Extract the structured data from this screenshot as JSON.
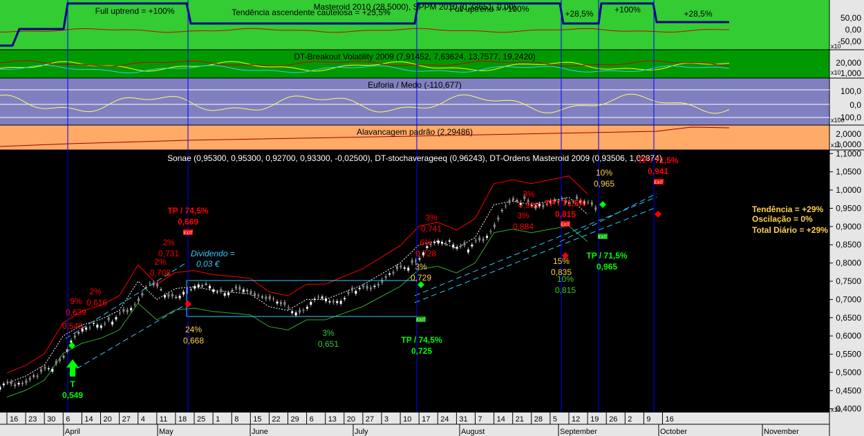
{
  "colors": {
    "green_panel": "#33cc33",
    "dark_green_panel": "#009900",
    "purple_panel": "#8080c0",
    "orange_panel": "#ffaa66",
    "price_bg": "#000000",
    "axis_bg": "#e6e6e6",
    "vline": "#0000ff",
    "buy": "#00ff00",
    "sell": "#ff0000",
    "yellow_text": "#ffd24d",
    "channel": "#33ccff"
  },
  "panels": {
    "masteroid": {
      "title": "Masteroid 2010 (28,5000), SPPM 2010 (0,33651, 0,00)",
      "phase_labels": [
        "Full uptrend = +100%",
        "Tendência ascendente cautelosa = +25,5%",
        "Full uptrend = +100%",
        "+28,5%",
        "+100%",
        "+28,5%"
      ],
      "ticks": [
        "50,00",
        "0,00",
        "-50,00"
      ],
      "scale": "x10"
    },
    "breakout": {
      "title": "DT-Breakout Volatility 2009 (7,91452, 7,63624, 13,7577, 19,2420)",
      "ticks": [
        "20,000",
        "1,000"
      ],
      "scale": "x10"
    },
    "euforia": {
      "title": "Euforia / Medo (-110,677)",
      "ticks": [
        "100,0",
        "0,0",
        "-100,0"
      ],
      "scale": "x100"
    },
    "alavancagem": {
      "title": "Alavancagem padrão (2,29486)",
      "ticks": [
        "2,0000",
        "1,0000"
      ],
      "scale": "x10"
    }
  },
  "chart_data": {
    "type": "line",
    "title": "Sonae (0,95300, 0,95300, 0,92700, 0,93300, -0,02500), DT-stochaverageeq (0,96243), DT-Ordens Masteroid 2009 (0,93506, 1,02874)",
    "ylim": [
      0.39,
      1.11
    ],
    "y_ticks": [
      "1,1000",
      "1,0500",
      "1,0000",
      "0,9500",
      "0,9000",
      "0,8500",
      "0,8000",
      "0,7500",
      "0,7000",
      "0,6500",
      "0,6000",
      "0,5500",
      "0,5000",
      "0,4500",
      "0,4000"
    ],
    "y_scale_label": "x10",
    "x_day_labels": [
      "16",
      "23",
      "30",
      "6",
      "14",
      "20",
      "27",
      "4",
      "11",
      "18",
      "25",
      "1",
      "8",
      "15",
      "22",
      "29",
      "6",
      "13",
      "20",
      "27",
      "3",
      "10",
      "17",
      "24",
      "31",
      "7",
      "14",
      "21",
      "28",
      "5",
      "12",
      "19",
      "26",
      "2",
      "9",
      "16"
    ],
    "x_month_labels": [
      "April",
      "May",
      "June",
      "July",
      "August",
      "September",
      "October",
      "November"
    ],
    "series": [
      {
        "name": "Sonae",
        "x": [
          "Mar 16",
          "Mar 23",
          "Mar 30",
          "Apr 6",
          "Apr 14",
          "Apr 20",
          "Apr 27",
          "May 4",
          "May 11",
          "May 18",
          "May 25",
          "Jun 1",
          "Jun 8",
          "Jun 15",
          "Jun 22",
          "Jun 29",
          "Jul 6",
          "Jul 13",
          "Jul 20",
          "Jul 27",
          "Aug 3",
          "Aug 10",
          "Aug 17",
          "Aug 24",
          "Aug 31",
          "Sep 7",
          "Sep 14",
          "Sep 21",
          "Sep 28",
          "Oct 5",
          "Oct 12",
          "Oct 19"
        ],
        "values": [
          0.47,
          0.49,
          0.52,
          0.6,
          0.63,
          0.645,
          0.67,
          0.75,
          0.7,
          0.73,
          0.735,
          0.725,
          0.72,
          0.715,
          0.68,
          0.67,
          0.7,
          0.7,
          0.72,
          0.74,
          0.77,
          0.8,
          0.85,
          0.86,
          0.84,
          0.87,
          0.96,
          0.97,
          0.96,
          0.97,
          0.98,
          0.933
        ]
      }
    ],
    "annotations": {
      "sell_labels": [
        {
          "lines": [
            "TP / 74,5%",
            "0,669"
          ]
        },
        {
          "lines": [
            "TP / 71,5%",
            "0,815"
          ]
        },
        {
          "lines": [
            "TP / 71,5%",
            "0,941"
          ]
        }
      ],
      "buy_labels": [
        {
          "lines": [
            "T",
            "0,549"
          ]
        },
        {
          "lines": [
            "TP / 74,5%",
            "0,725"
          ]
        },
        {
          "lines": [
            "TP / 71,5%",
            "0,965"
          ]
        }
      ],
      "red_small": [
        "9%",
        "0,639",
        "0,549",
        "2%",
        "0,616",
        "2%",
        "0,731",
        "2%",
        "0,708",
        "3%",
        "0,741",
        "6%",
        "0,728",
        "3%",
        "0,903",
        "3%",
        "0,884"
      ],
      "yellow_small": [
        "24%",
        "0,668",
        "3%",
        "0,729",
        "15%",
        "0,835",
        "10%",
        "0,965"
      ],
      "green_small": [
        "3%",
        "0,651",
        "10%",
        "0,815"
      ],
      "dividend": [
        "Dividendo =",
        "0,03 €"
      ],
      "exit_tag": "EXIT"
    },
    "summary": [
      "Tendência = +29%",
      "Oscilação = 0%",
      "Total Diário = +29%"
    ]
  }
}
